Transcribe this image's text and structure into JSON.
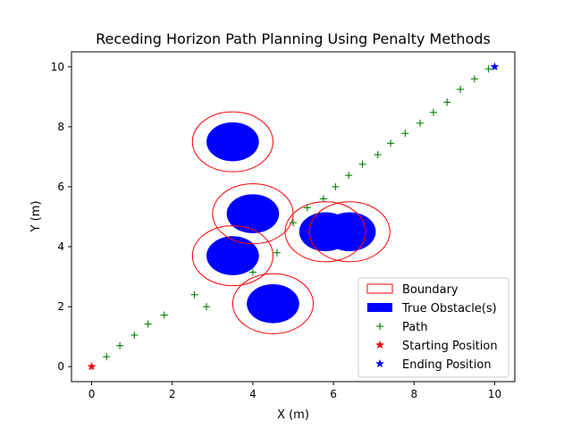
{
  "chart_data": {
    "type": "scatter",
    "title": "Receding Horizon Path Planning Using Penalty Methods",
    "xlabel": "X (m)",
    "ylabel": "Y (m)",
    "xlim": [
      -0.5,
      10.5
    ],
    "ylim": [
      -0.5,
      10.5
    ],
    "xticks": [
      0,
      2,
      4,
      6,
      8,
      10
    ],
    "yticks": [
      0,
      2,
      4,
      6,
      8,
      10
    ],
    "grid": false,
    "legend_position": "lower-right",
    "obstacles": [
      {
        "cx": 3.5,
        "cy": 7.5,
        "rx": 0.65,
        "ry": 0.65,
        "boundary_rx": 1.0,
        "boundary_ry": 1.0
      },
      {
        "cx": 4.0,
        "cy": 5.1,
        "rx": 0.65,
        "ry": 0.65,
        "boundary_rx": 1.0,
        "boundary_ry": 1.0
      },
      {
        "cx": 3.5,
        "cy": 3.7,
        "rx": 0.65,
        "ry": 0.65,
        "boundary_rx": 1.0,
        "boundary_ry": 1.0
      },
      {
        "cx": 5.8,
        "cy": 4.5,
        "rx": 0.65,
        "ry": 0.65,
        "boundary_rx": 1.0,
        "boundary_ry": 1.0
      },
      {
        "cx": 6.4,
        "cy": 4.5,
        "rx": 0.65,
        "ry": 0.65,
        "boundary_rx": 1.0,
        "boundary_ry": 1.0
      },
      {
        "cx": 4.5,
        "cy": 2.1,
        "rx": 0.65,
        "ry": 0.65,
        "boundary_rx": 1.0,
        "boundary_ry": 1.0
      }
    ],
    "path": [
      {
        "x": 0.37,
        "y": 0.33
      },
      {
        "x": 0.7,
        "y": 0.7
      },
      {
        "x": 1.06,
        "y": 1.05
      },
      {
        "x": 1.4,
        "y": 1.42
      },
      {
        "x": 1.8,
        "y": 1.72
      },
      {
        "x": 2.55,
        "y": 2.4
      },
      {
        "x": 2.85,
        "y": 2.0
      },
      {
        "x": 4.0,
        "y": 3.15
      },
      {
        "x": 4.6,
        "y": 3.8
      },
      {
        "x": 5.0,
        "y": 4.8
      },
      {
        "x": 5.35,
        "y": 5.3
      },
      {
        "x": 5.75,
        "y": 5.6
      },
      {
        "x": 6.05,
        "y": 6.0
      },
      {
        "x": 6.38,
        "y": 6.38
      },
      {
        "x": 6.72,
        "y": 6.75
      },
      {
        "x": 7.1,
        "y": 7.07
      },
      {
        "x": 7.42,
        "y": 7.45
      },
      {
        "x": 7.78,
        "y": 7.78
      },
      {
        "x": 8.15,
        "y": 8.12
      },
      {
        "x": 8.48,
        "y": 8.48
      },
      {
        "x": 8.82,
        "y": 8.82
      },
      {
        "x": 9.15,
        "y": 9.25
      },
      {
        "x": 9.5,
        "y": 9.6
      },
      {
        "x": 9.85,
        "y": 9.93
      }
    ],
    "start": {
      "x": 0,
      "y": 0
    },
    "end": {
      "x": 10,
      "y": 10
    },
    "colors": {
      "boundary": "#ff0000",
      "obstacle": "#0000ff",
      "path": "#008000",
      "start": "#ff0000",
      "end": "#0000ff"
    },
    "legend": [
      {
        "label": "Boundary",
        "kind": "boundary"
      },
      {
        "label": "True Obstacle(s)",
        "kind": "obstacle"
      },
      {
        "label": "Path",
        "kind": "path"
      },
      {
        "label": "Starting Position",
        "kind": "start"
      },
      {
        "label": "Ending Position",
        "kind": "end"
      }
    ]
  }
}
